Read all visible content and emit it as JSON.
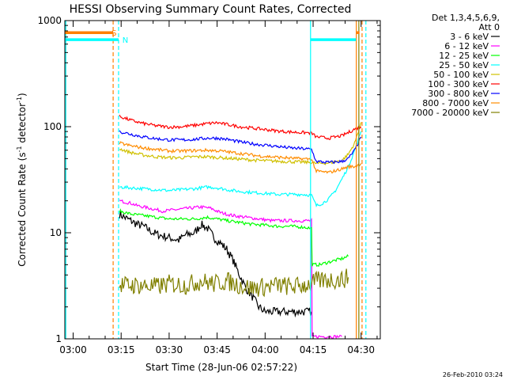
{
  "chart_data": {
    "type": "line",
    "title": "HESSI Observing Summary Count Rates, Corrected",
    "xlabel": "Start Time (28-Jun-06 02:57:22)",
    "ylabel": "Corrected Count Rate (s",
    "ylabel_sup1": "-1",
    "ylabel_mid": " detector",
    "ylabel_sup2": "-1",
    "ylabel_end": ")",
    "yscale": "log",
    "xlim_minutes_after_0300": [
      -2.6,
      96
    ],
    "ylim": [
      1,
      1000
    ],
    "x_ticks": [
      {
        "label": "03:00",
        "t": 0
      },
      {
        "label": "03:15",
        "t": 15
      },
      {
        "label": "03:30",
        "t": 30
      },
      {
        "label": "03:45",
        "t": 45
      },
      {
        "label": "04:00",
        "t": 60
      },
      {
        "label": "04:15",
        "t": 75
      },
      {
        "label": "04:30",
        "t": 90
      }
    ],
    "y_ticks": [
      {
        "label": "1",
        "v": 1
      },
      {
        "label": "10",
        "v": 10
      },
      {
        "label": "100",
        "v": 100
      },
      {
        "label": "1000",
        "v": 1000
      }
    ],
    "legend_header": [
      "Det 1,3,4,5,6,9,",
      "Att 0"
    ],
    "series": [
      {
        "name": "3 - 6 keV",
        "color": "#000000",
        "points": [
          [
            14.5,
            15
          ],
          [
            16,
            14
          ],
          [
            18,
            13
          ],
          [
            20,
            12
          ],
          [
            22,
            11.5
          ],
          [
            25,
            10
          ],
          [
            27,
            9.5
          ],
          [
            30,
            9
          ],
          [
            33,
            8.5
          ],
          [
            35,
            9.5
          ],
          [
            38,
            10
          ],
          [
            40,
            12
          ],
          [
            42,
            11
          ],
          [
            44,
            9
          ],
          [
            46,
            8
          ],
          [
            48,
            7
          ],
          [
            50,
            5.5
          ],
          [
            52,
            4
          ],
          [
            54,
            3
          ],
          [
            56,
            2.5
          ],
          [
            58,
            2
          ],
          [
            60,
            1.8
          ],
          [
            65,
            1.8
          ],
          [
            70,
            1.8
          ],
          [
            74.5,
            1.8
          ]
        ]
      },
      {
        "name": "6 - 12 keV",
        "color": "#ff00ff",
        "points": [
          [
            14.5,
            20
          ],
          [
            18,
            19
          ],
          [
            20,
            18
          ],
          [
            24,
            17
          ],
          [
            28,
            16
          ],
          [
            32,
            16.5
          ],
          [
            36,
            17
          ],
          [
            40,
            17.5
          ],
          [
            43,
            17
          ],
          [
            46,
            15.5
          ],
          [
            50,
            14.5
          ],
          [
            54,
            14
          ],
          [
            58,
            13.5
          ],
          [
            62,
            13
          ],
          [
            66,
            13
          ],
          [
            70,
            13
          ],
          [
            74.5,
            13
          ],
          [
            74.7,
            1.05
          ],
          [
            84,
            1.05
          ]
        ]
      },
      {
        "name": "12 - 25 keV",
        "color": "#00ff00",
        "points": [
          [
            14.5,
            16
          ],
          [
            18,
            15
          ],
          [
            22,
            14.5
          ],
          [
            26,
            14
          ],
          [
            30,
            13.5
          ],
          [
            34,
            13.5
          ],
          [
            38,
            13.5
          ],
          [
            42,
            14
          ],
          [
            45,
            13.5
          ],
          [
            48,
            13
          ],
          [
            52,
            12.5
          ],
          [
            56,
            12
          ],
          [
            60,
            11.8
          ],
          [
            64,
            11.5
          ],
          [
            68,
            11.5
          ],
          [
            72,
            11.3
          ],
          [
            74.5,
            11
          ],
          [
            74.7,
            5
          ],
          [
            77,
            5
          ],
          [
            80,
            5.3
          ],
          [
            84,
            5.7
          ],
          [
            86,
            6
          ]
        ]
      },
      {
        "name": "25 - 50 keV",
        "color": "#00ffff",
        "points": [
          [
            14.5,
            27
          ],
          [
            18,
            26.5
          ],
          [
            22,
            26
          ],
          [
            26,
            25.5
          ],
          [
            30,
            25
          ],
          [
            34,
            25.5
          ],
          [
            38,
            26
          ],
          [
            42,
            27
          ],
          [
            45,
            26.5
          ],
          [
            48,
            25.5
          ],
          [
            52,
            24.5
          ],
          [
            56,
            24
          ],
          [
            60,
            23.5
          ],
          [
            64,
            23
          ],
          [
            68,
            23
          ],
          [
            72,
            23
          ],
          [
            74.5,
            22.5
          ],
          [
            76,
            18
          ],
          [
            78,
            19
          ],
          [
            80,
            21
          ],
          [
            82,
            25
          ],
          [
            84,
            32
          ],
          [
            86,
            42
          ],
          [
            88,
            60
          ],
          [
            90,
            90
          ]
        ]
      },
      {
        "name": "50 - 100 keV",
        "color": "#d0c000",
        "points": [
          [
            14.5,
            62
          ],
          [
            18,
            57
          ],
          [
            22,
            54
          ],
          [
            26,
            52
          ],
          [
            30,
            51
          ],
          [
            34,
            51
          ],
          [
            38,
            52
          ],
          [
            42,
            52
          ],
          [
            46,
            51
          ],
          [
            50,
            50
          ],
          [
            54,
            49
          ],
          [
            58,
            48
          ],
          [
            62,
            47.5
          ],
          [
            66,
            47
          ],
          [
            70,
            46.5
          ],
          [
            74.5,
            46
          ],
          [
            76,
            45
          ],
          [
            80,
            45.5
          ],
          [
            84,
            48
          ],
          [
            86,
            55
          ],
          [
            88,
            70
          ],
          [
            90,
            110
          ]
        ]
      },
      {
        "name": "100 - 300 keV",
        "color": "#ff0000",
        "points": [
          [
            14.5,
            125
          ],
          [
            18,
            115
          ],
          [
            22,
            107
          ],
          [
            26,
            102
          ],
          [
            30,
            99
          ],
          [
            34,
            100
          ],
          [
            38,
            103
          ],
          [
            42,
            107
          ],
          [
            45,
            109
          ],
          [
            48,
            105
          ],
          [
            52,
            100
          ],
          [
            56,
            97
          ],
          [
            60,
            94
          ],
          [
            64,
            91
          ],
          [
            68,
            89
          ],
          [
            72,
            88
          ],
          [
            74.5,
            87
          ],
          [
            76,
            80
          ],
          [
            80,
            78
          ],
          [
            84,
            82
          ],
          [
            86,
            88
          ],
          [
            88,
            95
          ],
          [
            90,
            100
          ]
        ]
      },
      {
        "name": "300 - 800 keV",
        "color": "#0000ff",
        "points": [
          [
            14.5,
            90
          ],
          [
            18,
            85
          ],
          [
            22,
            80
          ],
          [
            26,
            77
          ],
          [
            30,
            75
          ],
          [
            34,
            75
          ],
          [
            38,
            76
          ],
          [
            42,
            78
          ],
          [
            45,
            78
          ],
          [
            48,
            76
          ],
          [
            52,
            72
          ],
          [
            56,
            69
          ],
          [
            60,
            67
          ],
          [
            64,
            65
          ],
          [
            68,
            63
          ],
          [
            72,
            62
          ],
          [
            74.5,
            61
          ],
          [
            76,
            47
          ],
          [
            80,
            46
          ],
          [
            84,
            47
          ],
          [
            86,
            50
          ],
          [
            88,
            60
          ],
          [
            90,
            80
          ]
        ]
      },
      {
        "name": "800 - 7000 keV",
        "color": "#ff8c00",
        "points": [
          [
            14.5,
            70
          ],
          [
            18,
            66
          ],
          [
            22,
            63
          ],
          [
            26,
            61
          ],
          [
            30,
            59
          ],
          [
            34,
            59
          ],
          [
            38,
            59.5
          ],
          [
            42,
            60
          ],
          [
            46,
            59
          ],
          [
            50,
            57
          ],
          [
            54,
            55
          ],
          [
            58,
            53
          ],
          [
            62,
            52
          ],
          [
            66,
            51
          ],
          [
            70,
            50
          ],
          [
            74.5,
            49.5
          ],
          [
            76,
            38
          ],
          [
            80,
            37
          ],
          [
            84,
            40
          ],
          [
            86,
            42
          ],
          [
            88,
            42
          ],
          [
            90,
            45
          ]
        ]
      },
      {
        "name": "7000 - 20000 keV",
        "color": "#808000",
        "points": [
          [
            14.5,
            3.2
          ],
          [
            20,
            3.2
          ],
          [
            26,
            3.1
          ],
          [
            30,
            3.3
          ],
          [
            35,
            3.2
          ],
          [
            40,
            3.5
          ],
          [
            44,
            3.3
          ],
          [
            48,
            3.5
          ],
          [
            52,
            3.2
          ],
          [
            56,
            3
          ],
          [
            60,
            3.1
          ],
          [
            64,
            3.2
          ],
          [
            68,
            3.1
          ],
          [
            72,
            3.2
          ],
          [
            74.5,
            3.3
          ],
          [
            76,
            3.5
          ],
          [
            80,
            3.6
          ],
          [
            84,
            3.6
          ],
          [
            86,
            3.8
          ]
        ]
      }
    ],
    "flag_bars": [
      {
        "name": "orange-flag-bar",
        "color": "#ff7f00",
        "value": 770,
        "x_ranges": [
          [
            -2.6,
            12.5
          ],
          [
            88.5,
            89.5
          ]
        ],
        "label": "S",
        "label_at": 12.8
      },
      {
        "name": "cyan-flag-bar",
        "color": "#00ffff",
        "value": 660,
        "x_ranges": [
          [
            -2.6,
            14.2
          ],
          [
            74.2,
            88.4
          ]
        ],
        "label": "N",
        "label_at": 16.3
      }
    ],
    "vertical_lines": [
      {
        "name": "cyan-solid-line-left",
        "color": "#00ffff",
        "style": "solid",
        "t": -2.3
      },
      {
        "name": "orange-dashed-line-1",
        "color": "#ff7f00",
        "style": "dashed",
        "t": 12.5
      },
      {
        "name": "cyan-dashed-line-1",
        "color": "#00ffff",
        "style": "dashed",
        "t": 14.2
      },
      {
        "name": "cyan-solid-line-mid",
        "color": "#00ffff",
        "style": "solid",
        "t": 74.2
      },
      {
        "name": "orange-solid-line-right",
        "color": "#ff7f00",
        "style": "solid",
        "t": 88.5
      },
      {
        "name": "olive-solid-line-right",
        "color": "#808000",
        "style": "solid",
        "t": 89.3
      },
      {
        "name": "orange-dashed-line-2",
        "color": "#ff7f00",
        "style": "dashed",
        "t": 90.3
      },
      {
        "name": "cyan-dashed-line-2",
        "color": "#00ffff",
        "style": "dashed",
        "t": 91.5
      }
    ],
    "grid": false,
    "legend_placement": "right",
    "footer_timestamp": "26-Feb-2010 03:24"
  }
}
